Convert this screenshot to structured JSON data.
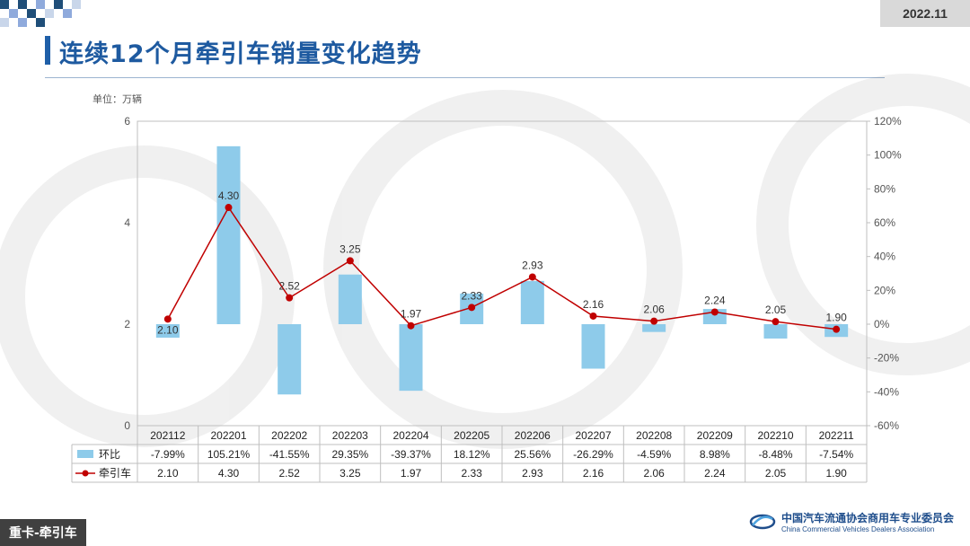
{
  "header": {
    "date": "2022.11",
    "title": "连续12个月牵引车销量变化趋势"
  },
  "footer": {
    "section_tag": "重卡-牵引车"
  },
  "org": {
    "name_cn": "中国汽车流通协会商用车专业委员会",
    "name_en": "China Commercial Vehicles Dealers Association"
  },
  "unit_label": "单位：万辆",
  "colors": {
    "bar": "#8ecbea",
    "line": "#c00000",
    "grid": "#bfbfbf",
    "accent": "#1e5aa0"
  },
  "chart_data": {
    "type": "bar+line",
    "categories": [
      "202112",
      "202201",
      "202202",
      "202203",
      "202204",
      "202205",
      "202206",
      "202207",
      "202208",
      "202209",
      "202210",
      "202211"
    ],
    "series": [
      {
        "name": "环比",
        "type": "bar",
        "axis": "right",
        "values": [
          -7.99,
          105.21,
          -41.55,
          29.35,
          -39.37,
          18.12,
          25.56,
          -26.29,
          -4.59,
          8.98,
          -8.48,
          -7.54
        ],
        "labels": [
          "-7.99%",
          "105.21%",
          "-41.55%",
          "29.35%",
          "-39.37%",
          "18.12%",
          "25.56%",
          "-26.29%",
          "-4.59%",
          "8.98%",
          "-8.48%",
          "-7.54%"
        ]
      },
      {
        "name": "牵引车",
        "type": "line",
        "axis": "left",
        "values": [
          2.1,
          4.3,
          2.52,
          3.25,
          1.97,
          2.33,
          2.93,
          2.16,
          2.06,
          2.24,
          2.05,
          1.9
        ],
        "labels": [
          "2.10",
          "4.30",
          "2.52",
          "3.25",
          "1.97",
          "2.33",
          "2.93",
          "2.16",
          "2.06",
          "2.24",
          "2.05",
          "1.90"
        ]
      }
    ],
    "y_left": {
      "range": [
        0,
        6
      ],
      "ticks": [
        "0",
        "2",
        "4",
        "6"
      ]
    },
    "y_right": {
      "range": [
        -60,
        120
      ],
      "ticks": [
        "-60%",
        "-40%",
        "-20%",
        "0%",
        "20%",
        "40%",
        "60%",
        "80%",
        "100%",
        "120%"
      ]
    },
    "grid": false,
    "legend": "data-table-below"
  }
}
